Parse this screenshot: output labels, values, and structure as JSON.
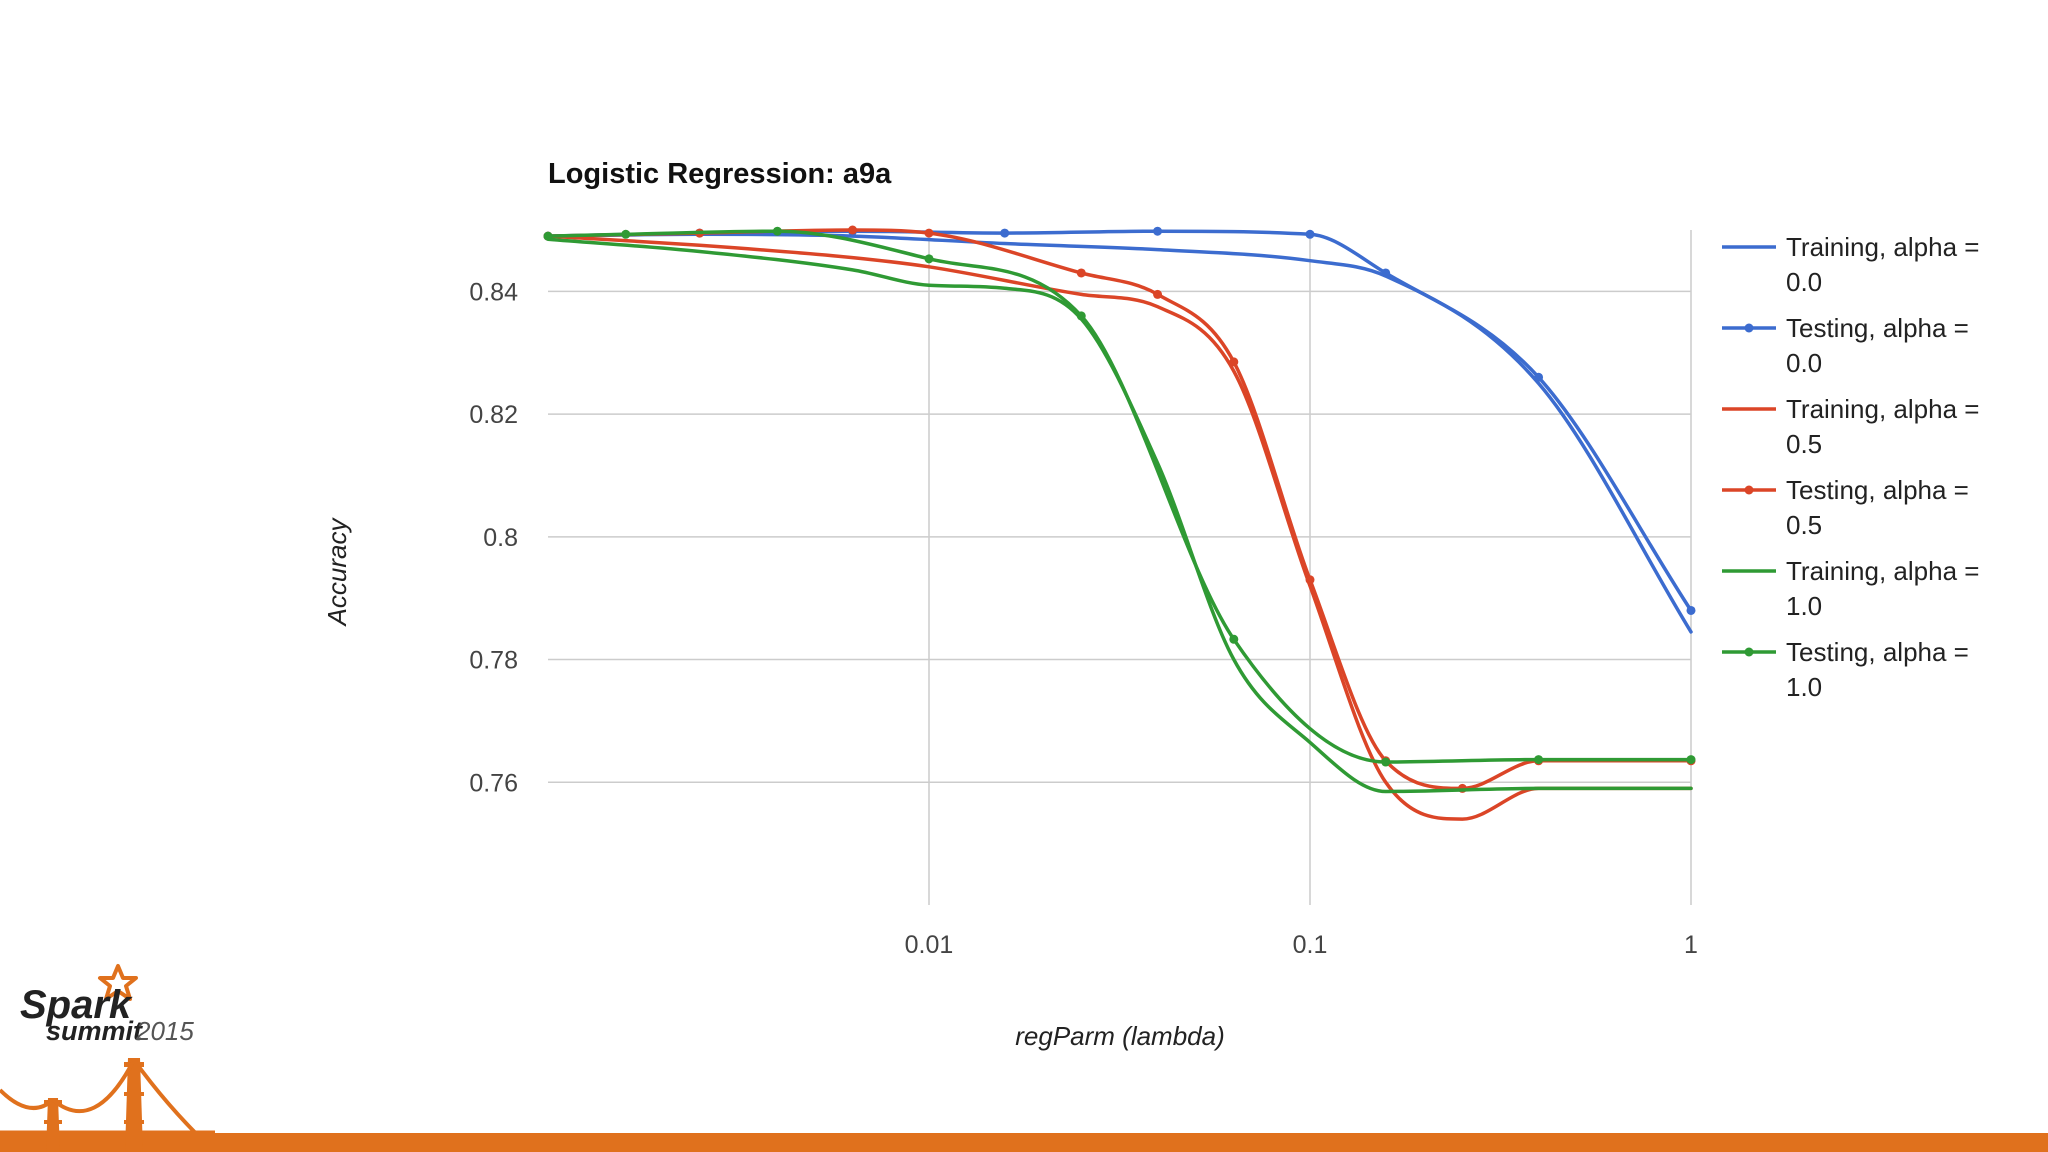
{
  "colors": {
    "training_alpha_0": "#3c6ccf",
    "testing_alpha_0": "#3c6ccf",
    "training_alpha_05": "#db4527",
    "testing_alpha_05": "#db4527",
    "training_alpha_1": "#2f9a34",
    "testing_alpha_1": "#2f9a34",
    "footer_bar": "#e0711d",
    "bridge": "#e0711d",
    "star": "#e0711d",
    "grid": "#cccccc"
  },
  "logo": {
    "line1": "Spark",
    "line2": "summit",
    "year": "2015",
    "icons": [
      "star-icon",
      "golden-gate-bridge-icon"
    ]
  },
  "chart_data": {
    "type": "line",
    "title": "Logistic Regression: a9a",
    "xlabel": "regParm (lambda)",
    "ylabel": "Accuracy",
    "x_scale": "log",
    "xlim": [
      0.001,
      1
    ],
    "ylim": [
      0.74,
      0.85
    ],
    "x_ticks": [
      0.01,
      0.1,
      1
    ],
    "x_tick_labels": [
      "0.01",
      "0.1",
      "1"
    ],
    "y_ticks": [
      0.76,
      0.78,
      0.8,
      0.82,
      0.84
    ],
    "y_tick_labels": [
      "0.76",
      "0.78",
      "0.8",
      "0.82",
      "0.84"
    ],
    "grid": true,
    "legend_position": "right",
    "smooth": true,
    "series": [
      {
        "name": "Training, alpha = 0.0",
        "legend_line1": "Training, alpha =",
        "legend_line2": "0.0",
        "color_key": "training_alpha_0",
        "markers": false,
        "x": [
          0.001,
          0.0025,
          0.0063,
          0.0158,
          0.0398,
          0.1,
          0.158,
          0.398,
          1
        ],
        "y": [
          0.849,
          0.8493,
          0.849,
          0.8478,
          0.8468,
          0.845,
          0.8425,
          0.825,
          0.7845
        ]
      },
      {
        "name": "Testing, alpha = 0.0",
        "legend_line1": "Testing, alpha =",
        "legend_line2": "0.0",
        "color_key": "testing_alpha_0",
        "markers": true,
        "x": [
          0.001,
          0.0025,
          0.0063,
          0.0158,
          0.0398,
          0.1,
          0.158,
          0.398,
          1
        ],
        "y": [
          0.849,
          0.8495,
          0.8498,
          0.8495,
          0.8498,
          0.8493,
          0.843,
          0.826,
          0.788
        ]
      },
      {
        "name": "Training, alpha = 0.5",
        "legend_line1": "Training, alpha =",
        "legend_line2": "0.5",
        "color_key": "training_alpha_05",
        "markers": false,
        "x": [
          0.001,
          0.0025,
          0.0063,
          0.01,
          0.0251,
          0.0398,
          0.0631,
          0.1,
          0.158,
          0.2512,
          0.398,
          1
        ],
        "y": [
          0.849,
          0.8475,
          0.8455,
          0.844,
          0.8395,
          0.8375,
          0.827,
          0.792,
          0.76,
          0.754,
          0.759,
          0.759
        ]
      },
      {
        "name": "Testing, alpha = 0.5",
        "legend_line1": "Testing, alpha =",
        "legend_line2": "0.5",
        "color_key": "testing_alpha_05",
        "markers": true,
        "x": [
          0.001,
          0.0025,
          0.0063,
          0.01,
          0.0251,
          0.0398,
          0.0631,
          0.1,
          0.158,
          0.2512,
          0.398,
          1
        ],
        "y": [
          0.849,
          0.8495,
          0.85,
          0.8495,
          0.843,
          0.8395,
          0.8285,
          0.793,
          0.7635,
          0.759,
          0.7635,
          0.7635
        ]
      },
      {
        "name": "Training, alpha = 1.0",
        "legend_line1": "Training, alpha =",
        "legend_line2": "1.0",
        "color_key": "training_alpha_1",
        "markers": false,
        "x": [
          0.001,
          0.0025,
          0.0063,
          0.01,
          0.0158,
          0.0251,
          0.0398,
          0.0631,
          0.1,
          0.158,
          0.398,
          1
        ],
        "y": [
          0.8485,
          0.8465,
          0.8435,
          0.841,
          0.8405,
          0.8355,
          0.812,
          0.78,
          0.7665,
          0.7585,
          0.759,
          0.759
        ]
      },
      {
        "name": "Testing, alpha = 1.0",
        "legend_line1": "Testing, alpha =",
        "legend_line2": "1.0",
        "color_key": "testing_alpha_1",
        "markers": true,
        "x": [
          0.001,
          0.0016,
          0.004,
          0.01,
          0.0251,
          0.0631,
          0.158,
          0.398,
          1
        ],
        "y": [
          0.849,
          0.8493,
          0.8498,
          0.8453,
          0.836,
          0.7833,
          0.7633,
          0.7637,
          0.7637
        ]
      }
    ]
  }
}
